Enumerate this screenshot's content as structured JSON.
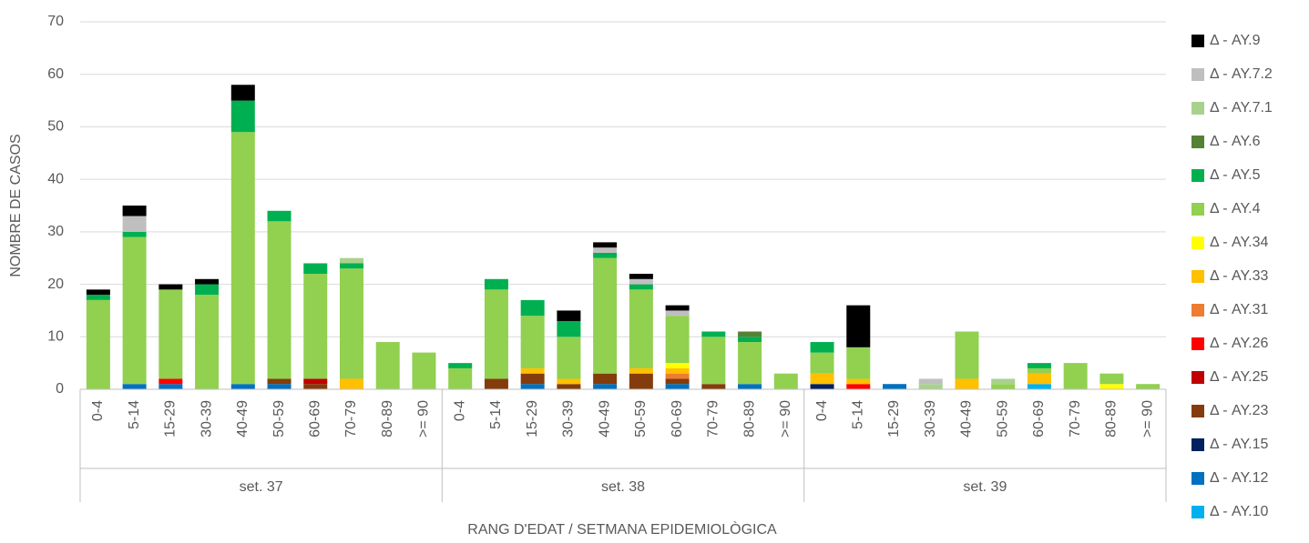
{
  "chart_data": {
    "type": "stacked_bar",
    "y_label": "NOMBRE DE CASOS",
    "x_label": "RANG D'EDAT / SETMANA EPIDEMIOLÒGICA",
    "groups": [
      "set. 37",
      "set. 38",
      "set. 39"
    ],
    "categories": [
      "0-4",
      "5-14",
      "15-29",
      "30-39",
      "40-49",
      "50-59",
      "60-69",
      "70-79",
      "80-89",
      ">= 90",
      "0-4",
      "5-14",
      "15-29",
      "30-39",
      "40-49",
      "50-59",
      "60-69",
      "70-79",
      "80-89",
      ">= 90",
      "0-4",
      "5-14",
      "15-29",
      "30-39",
      "40-49",
      "50-59",
      "60-69",
      "70-79",
      "80-89",
      ">= 90"
    ],
    "ylim": [
      0,
      70
    ],
    "yticks": [
      0,
      10,
      20,
      30,
      40,
      50,
      60,
      70
    ],
    "grid": true,
    "series": [
      {
        "name": "Δ - AY.10",
        "color": "#00b0f0",
        "values": [
          0,
          0,
          0,
          0,
          0,
          0,
          0,
          0,
          0,
          0,
          0,
          0,
          0,
          0,
          0,
          0,
          0,
          0,
          0,
          0,
          0,
          0,
          0,
          0,
          0,
          0,
          1,
          0,
          0,
          0
        ]
      },
      {
        "name": "Δ - AY.12",
        "color": "#0070c0",
        "values": [
          0,
          1,
          1,
          0,
          1,
          1,
          0,
          0,
          0,
          0,
          0,
          0,
          1,
          0,
          1,
          0,
          1,
          0,
          1,
          0,
          0,
          0,
          1,
          0,
          0,
          0,
          0,
          0,
          0,
          0
        ]
      },
      {
        "name": "Δ - AY.15",
        "color": "#002060",
        "values": [
          0,
          0,
          0,
          0,
          0,
          0,
          0,
          0,
          0,
          0,
          0,
          0,
          0,
          0,
          0,
          0,
          0,
          0,
          0,
          0,
          1,
          0,
          0,
          0,
          0,
          0,
          0,
          0,
          0,
          0
        ]
      },
      {
        "name": "Δ - AY.23",
        "color": "#843c0c",
        "values": [
          0,
          0,
          0,
          0,
          0,
          1,
          1,
          0,
          0,
          0,
          0,
          2,
          2,
          1,
          2,
          3,
          1,
          1,
          0,
          0,
          0,
          0,
          0,
          0,
          0,
          0,
          0,
          0,
          0,
          0
        ]
      },
      {
        "name": "Δ - AY.25",
        "color": "#c00000",
        "values": [
          0,
          0,
          0,
          0,
          0,
          0,
          1,
          0,
          0,
          0,
          0,
          0,
          0,
          0,
          0,
          0,
          0,
          0,
          0,
          0,
          0,
          0,
          0,
          0,
          0,
          0,
          0,
          0,
          0,
          0
        ]
      },
      {
        "name": "Δ - AY.26",
        "color": "#ff0000",
        "values": [
          0,
          0,
          1,
          0,
          0,
          0,
          0,
          0,
          0,
          0,
          0,
          0,
          0,
          0,
          0,
          0,
          0,
          0,
          0,
          0,
          0,
          1,
          0,
          0,
          0,
          0,
          0,
          0,
          0,
          0
        ]
      },
      {
        "name": "Δ - AY.31",
        "color": "#ed7d31",
        "values": [
          0,
          0,
          0,
          0,
          0,
          0,
          0,
          0,
          0,
          0,
          0,
          0,
          0,
          0,
          0,
          0,
          1,
          0,
          0,
          0,
          0,
          0,
          0,
          0,
          0,
          0,
          0,
          0,
          0,
          0
        ]
      },
      {
        "name": "Δ - AY.33",
        "color": "#ffc000",
        "values": [
          0,
          0,
          0,
          0,
          0,
          0,
          0,
          2,
          0,
          0,
          0,
          0,
          1,
          1,
          0,
          1,
          1,
          0,
          0,
          0,
          2,
          1,
          0,
          0,
          2,
          0,
          2,
          0,
          0,
          0
        ]
      },
      {
        "name": "Δ - AY.34",
        "color": "#ffff00",
        "values": [
          0,
          0,
          0,
          0,
          0,
          0,
          0,
          0,
          0,
          0,
          0,
          0,
          0,
          0,
          0,
          0,
          1,
          0,
          0,
          0,
          0,
          0,
          0,
          0,
          0,
          0,
          0,
          0,
          1,
          0
        ]
      },
      {
        "name": "Δ - AY.4",
        "color": "#92d050",
        "values": [
          17,
          28,
          17,
          18,
          48,
          30,
          20,
          21,
          9,
          7,
          4,
          17,
          10,
          8,
          22,
          15,
          9,
          9,
          8,
          3,
          4,
          6,
          0,
          0,
          9,
          1,
          1,
          5,
          2,
          1
        ]
      },
      {
        "name": "Δ - AY.5",
        "color": "#00b050",
        "values": [
          1,
          1,
          0,
          2,
          6,
          2,
          2,
          1,
          0,
          0,
          1,
          2,
          3,
          3,
          1,
          1,
          0,
          1,
          1,
          0,
          2,
          0,
          0,
          0,
          0,
          0,
          1,
          0,
          0,
          0
        ]
      },
      {
        "name": "Δ - AY.6",
        "color": "#548235",
        "values": [
          0,
          0,
          0,
          0,
          0,
          0,
          0,
          0,
          0,
          0,
          0,
          0,
          0,
          0,
          0,
          0,
          0,
          0,
          1,
          0,
          0,
          0,
          0,
          0,
          0,
          0,
          0,
          0,
          0,
          0
        ]
      },
      {
        "name": "Δ - AY.7.1",
        "color": "#a9d18e",
        "values": [
          0,
          0,
          0,
          0,
          0,
          0,
          0,
          1,
          0,
          0,
          0,
          0,
          0,
          0,
          0,
          0,
          0,
          0,
          0,
          0,
          0,
          0,
          0,
          1,
          0,
          1,
          0,
          0,
          0,
          0
        ]
      },
      {
        "name": "Δ - AY.7.2",
        "color": "#bfbfbf",
        "values": [
          0,
          3,
          0,
          0,
          0,
          0,
          0,
          0,
          0,
          0,
          0,
          0,
          0,
          0,
          1,
          1,
          1,
          0,
          0,
          0,
          0,
          0,
          0,
          1,
          0,
          0,
          0,
          0,
          0,
          0
        ]
      },
      {
        "name": "Δ - AY.9",
        "color": "#000000",
        "values": [
          1,
          2,
          1,
          1,
          3,
          0,
          0,
          0,
          0,
          0,
          0,
          0,
          0,
          2,
          1,
          1,
          1,
          0,
          0,
          0,
          0,
          8,
          0,
          0,
          0,
          0,
          0,
          0,
          0,
          0
        ]
      }
    ]
  }
}
